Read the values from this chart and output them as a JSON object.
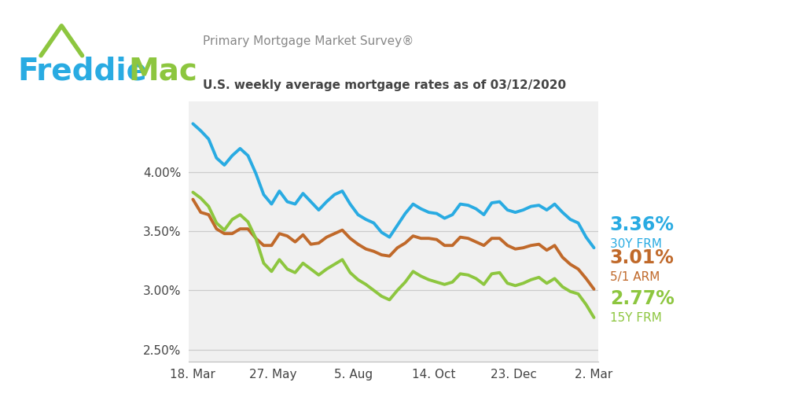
{
  "title_survey": "Primary Mortgage Market Survey®",
  "title_sub": "U.S. weekly average mortgage rates as of 03/12/2020",
  "freddie_blue": "#29ABE2",
  "freddie_green": "#8DC63F",
  "line_blue": "#29ABE2",
  "line_orange": "#C0692A",
  "line_green": "#8DC63F",
  "bg_color": "#FFFFFF",
  "plot_bg": "#F0F0F0",
  "label_30y_val": "3.36%",
  "label_30y_name": "30Y FRM",
  "label_15y_val": "2.77%",
  "label_15y_name": "15Y FRM",
  "label_arm_val": "3.01%",
  "label_arm_name": "5/1 ARM",
  "yticks": [
    2.5,
    3.0,
    3.5,
    4.0
  ],
  "ylim": [
    2.4,
    4.6
  ],
  "xtick_labels": [
    "18. Mar",
    "27. May",
    "5. Aug",
    "14. Oct",
    "23. Dec",
    "2. Mar"
  ],
  "rate_30y": [
    4.41,
    4.35,
    4.28,
    4.12,
    4.06,
    4.14,
    4.2,
    4.14,
    3.99,
    3.81,
    3.73,
    3.84,
    3.75,
    3.73,
    3.82,
    3.75,
    3.68,
    3.75,
    3.81,
    3.84,
    3.73,
    3.64,
    3.6,
    3.57,
    3.49,
    3.45,
    3.55,
    3.65,
    3.73,
    3.69,
    3.66,
    3.65,
    3.61,
    3.64,
    3.73,
    3.72,
    3.69,
    3.64,
    3.74,
    3.75,
    3.68,
    3.66,
    3.68,
    3.71,
    3.72,
    3.68,
    3.73,
    3.66,
    3.6,
    3.57,
    3.45,
    3.36
  ],
  "rate_15y": [
    3.83,
    3.78,
    3.71,
    3.57,
    3.51,
    3.6,
    3.64,
    3.58,
    3.44,
    3.23,
    3.16,
    3.26,
    3.18,
    3.15,
    3.23,
    3.18,
    3.13,
    3.18,
    3.22,
    3.26,
    3.15,
    3.09,
    3.05,
    3.0,
    2.95,
    2.92,
    3.0,
    3.07,
    3.16,
    3.12,
    3.09,
    3.07,
    3.05,
    3.07,
    3.14,
    3.13,
    3.1,
    3.05,
    3.14,
    3.15,
    3.06,
    3.04,
    3.06,
    3.09,
    3.11,
    3.06,
    3.1,
    3.03,
    2.99,
    2.97,
    2.88,
    2.77
  ],
  "rate_arm": [
    3.77,
    3.66,
    3.64,
    3.52,
    3.48,
    3.48,
    3.52,
    3.52,
    3.44,
    3.38,
    3.38,
    3.48,
    3.46,
    3.41,
    3.47,
    3.39,
    3.4,
    3.45,
    3.48,
    3.51,
    3.44,
    3.39,
    3.35,
    3.33,
    3.3,
    3.29,
    3.36,
    3.4,
    3.46,
    3.44,
    3.44,
    3.43,
    3.38,
    3.38,
    3.45,
    3.44,
    3.41,
    3.38,
    3.44,
    3.44,
    3.38,
    3.35,
    3.36,
    3.38,
    3.39,
    3.34,
    3.38,
    3.28,
    3.22,
    3.18,
    3.1,
    3.01
  ]
}
